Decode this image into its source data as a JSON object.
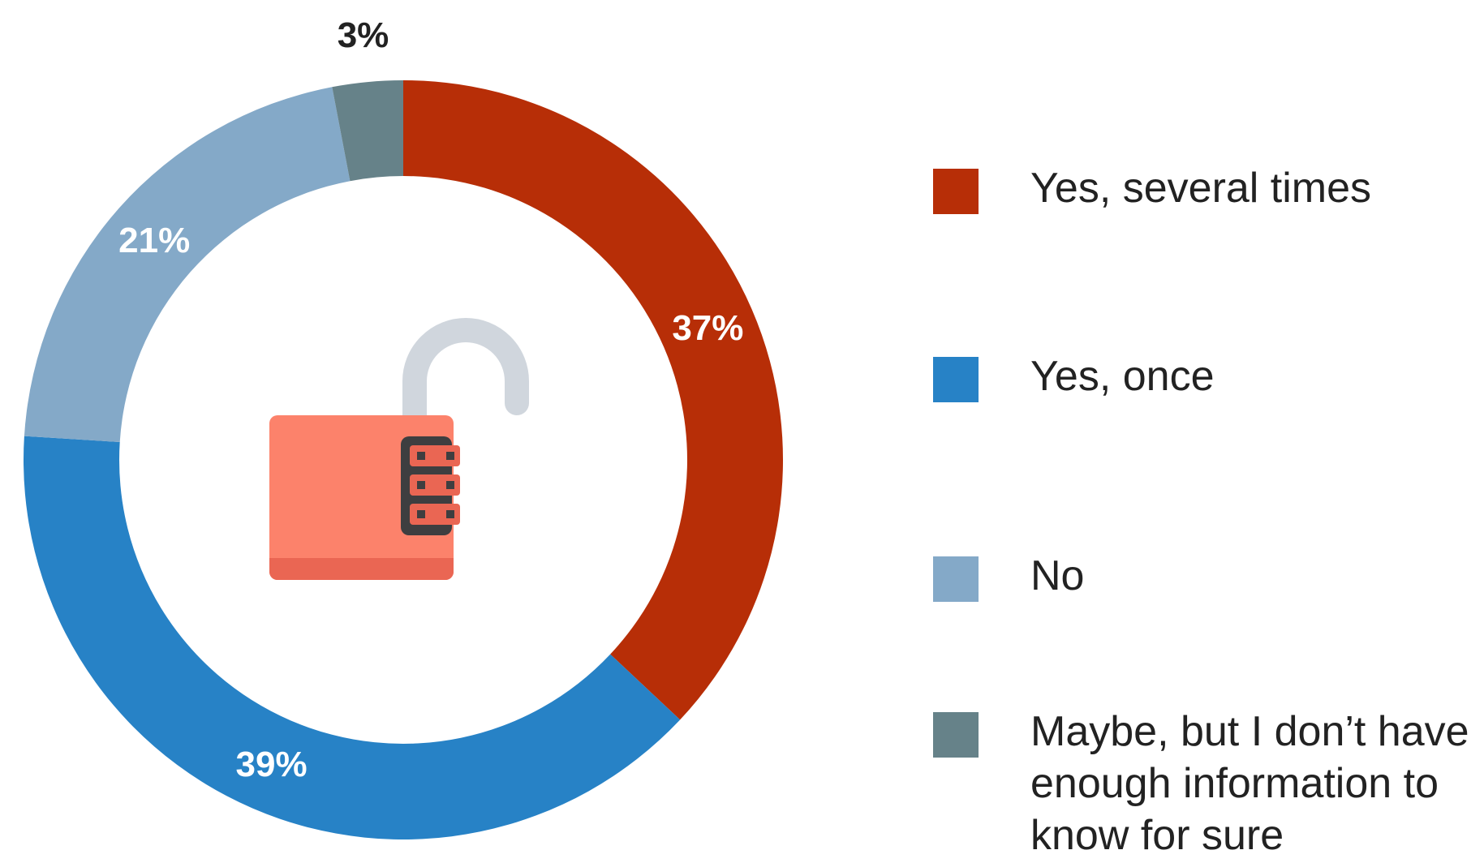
{
  "chart_data": {
    "type": "pie",
    "variant": "donut",
    "title": "",
    "slices": [
      {
        "label": "Yes, several times",
        "value": 37,
        "display": "37%",
        "color": "#b72e07"
      },
      {
        "label": "Yes, once",
        "value": 39,
        "display": "39%",
        "color": "#2782c6"
      },
      {
        "label": "No",
        "value": 21,
        "display": "21%",
        "color": "#84a9c8"
      },
      {
        "label": "Maybe, but I don’t have enough information to know for sure",
        "value": 3,
        "display": "3%",
        "color": "#668289"
      }
    ],
    "legend_position": "right",
    "center_icon": "open-padlock-icon"
  },
  "icon_colors": {
    "lock_body": "#fc826b",
    "lock_base": "#ea6653",
    "shackle": "#d0d6dd",
    "dial_frame": "#3e3e40"
  }
}
